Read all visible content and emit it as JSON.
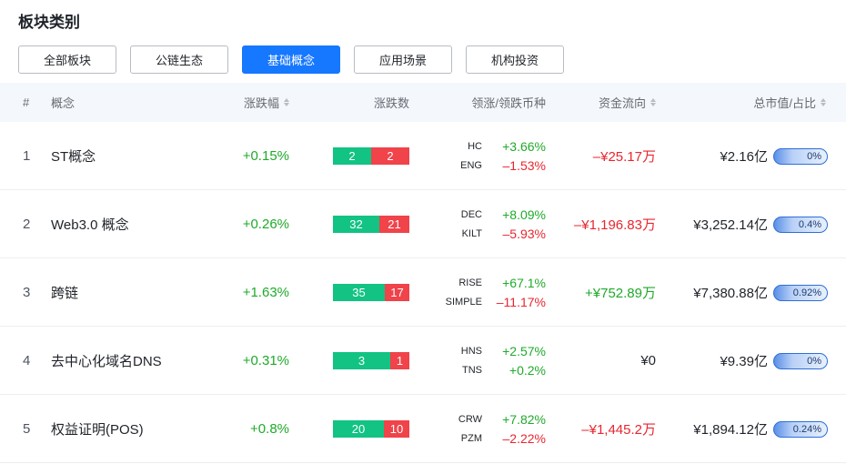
{
  "section": {
    "title": "板块类别"
  },
  "tabs": [
    {
      "label": "全部板块",
      "active": false
    },
    {
      "label": "公链生态",
      "active": false
    },
    {
      "label": "基础概念",
      "active": true
    },
    {
      "label": "应用场景",
      "active": false
    },
    {
      "label": "机构投资",
      "active": false
    }
  ],
  "columns": {
    "rank": "#",
    "name": "概念",
    "change": "涨跌幅",
    "updown": "涨跌数",
    "leaders": "领涨/领跌币种",
    "flow": "资金流向",
    "cap": "总市值/占比"
  },
  "colors": {
    "up": "#1faa2a",
    "down": "#e8262f",
    "bar_up": "#12c384",
    "bar_down": "#f0434a",
    "accent": "#1677ff"
  },
  "rows": [
    {
      "rank": "1",
      "name": "ST概念",
      "change": "+0.15%",
      "change_dir": "up",
      "up_count": "2",
      "down_count": "2",
      "lead_up_coin": "HC",
      "lead_up_pct": "+3.66%",
      "lead_down_coin": "ENG",
      "lead_down_pct": "–1.53%",
      "flow": "–¥25.17万",
      "flow_dir": "down",
      "cap": "¥2.16亿",
      "share": "0%"
    },
    {
      "rank": "2",
      "name": "Web3.0 概念",
      "change": "+0.26%",
      "change_dir": "up",
      "up_count": "32",
      "down_count": "21",
      "lead_up_coin": "DEC",
      "lead_up_pct": "+8.09%",
      "lead_down_coin": "KILT",
      "lead_down_pct": "–5.93%",
      "flow": "–¥1,196.83万",
      "flow_dir": "down",
      "cap": "¥3,252.14亿",
      "share": "0.4%"
    },
    {
      "rank": "3",
      "name": "跨链",
      "change": "+1.63%",
      "change_dir": "up",
      "up_count": "35",
      "down_count": "17",
      "lead_up_coin": "RISE",
      "lead_up_pct": "+67.1%",
      "lead_down_coin": "SIMPLE",
      "lead_down_pct": "–11.17%",
      "flow": "+¥752.89万",
      "flow_dir": "up",
      "cap": "¥7,380.88亿",
      "share": "0.92%"
    },
    {
      "rank": "4",
      "name": "去中心化域名DNS",
      "change": "+0.31%",
      "change_dir": "up",
      "up_count": "3",
      "down_count": "1",
      "lead_up_coin": "HNS",
      "lead_up_pct": "+2.57%",
      "lead_down_coin": "TNS",
      "lead_down_pct": "+0.2%",
      "flow": "¥0",
      "flow_dir": "neutral",
      "cap": "¥9.39亿",
      "share": "0%"
    },
    {
      "rank": "5",
      "name": "权益证明(POS)",
      "change": "+0.8%",
      "change_dir": "up",
      "up_count": "20",
      "down_count": "10",
      "lead_up_coin": "CRW",
      "lead_up_pct": "+7.82%",
      "lead_down_coin": "PZM",
      "lead_down_pct": "–2.22%",
      "flow": "–¥1,445.2万",
      "flow_dir": "down",
      "cap": "¥1,894.12亿",
      "share": "0.24%"
    }
  ]
}
